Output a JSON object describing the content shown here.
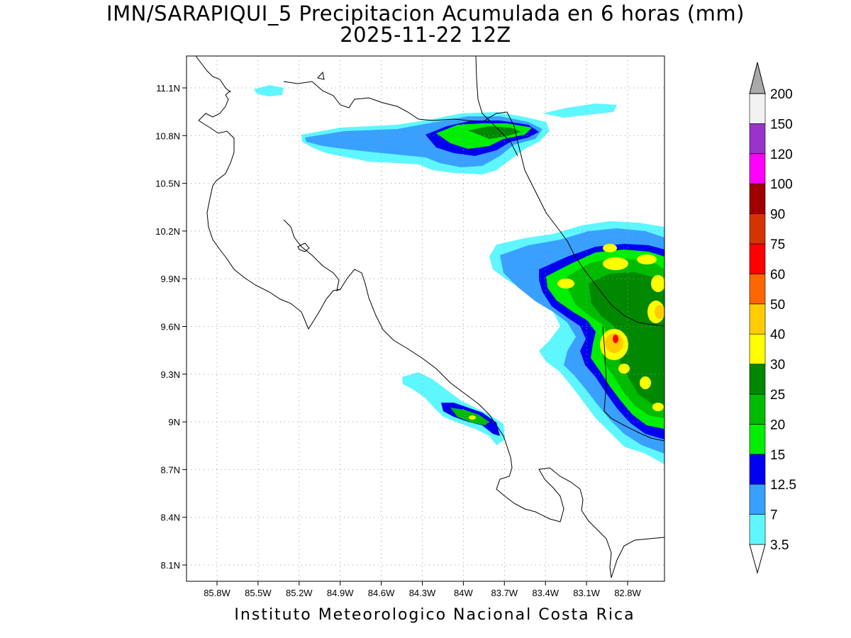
{
  "title": {
    "line1": "IMN/SARAPIQUI_5 Precipitacion Acumulada en 6 horas (mm)",
    "line2": "2025-11-22 12Z"
  },
  "footer": "Instituto Meteorologico Nacional Costa Rica",
  "map": {
    "x_ticks": [
      "85.8W",
      "85.5W",
      "85.2W",
      "84.9W",
      "84.6W",
      "84.3W",
      "84W",
      "83.7W",
      "83.4W",
      "83.1W",
      "82.8W"
    ],
    "y_ticks": [
      "11.1N",
      "10.8N",
      "10.5N",
      "10.2N",
      "9.9N",
      "9.6N",
      "9.3N",
      "9N",
      "8.7N",
      "8.4N",
      "8.1N"
    ],
    "grid": "dotted",
    "coastline_color": "#000000"
  },
  "legend": {
    "orientation": "vertical",
    "placement": "right",
    "bins": [
      {
        "label": "3.5",
        "color": "#5ef7ff"
      },
      {
        "label": "7",
        "color": "#3aa0ff"
      },
      {
        "label": "12.5",
        "color": "#0000f0"
      },
      {
        "label": "15",
        "color": "#00ee00"
      },
      {
        "label": "20",
        "color": "#00bb00"
      },
      {
        "label": "25",
        "color": "#008800"
      },
      {
        "label": "30",
        "color": "#ffff00"
      },
      {
        "label": "40",
        "color": "#ffcc00"
      },
      {
        "label": "50",
        "color": "#ff6600"
      },
      {
        "label": "60",
        "color": "#ff0000"
      },
      {
        "label": "75",
        "color": "#d43500"
      },
      {
        "label": "90",
        "color": "#a00000"
      },
      {
        "label": "100",
        "color": "#ff00ff"
      },
      {
        "label": "120",
        "color": "#9933cc"
      },
      {
        "label": "150",
        "color": "#f2f2f2"
      },
      {
        "label": "200",
        "color": "#aaaaaa"
      }
    ]
  }
}
